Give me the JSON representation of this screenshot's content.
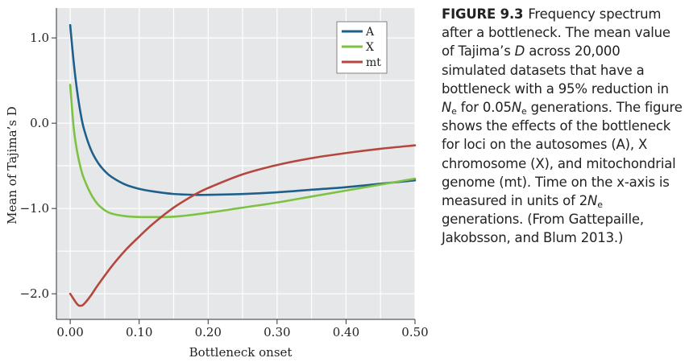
{
  "chart_data": {
    "type": "line",
    "xlabel": "Bottleneck onset",
    "ylabel": "Mean of Tajima’s D",
    "xlim": [
      -0.02,
      0.5
    ],
    "ylim": [
      -2.3,
      1.35
    ],
    "xticks": [
      0.0,
      0.1,
      0.2,
      0.3,
      0.4,
      0.5
    ],
    "xtick_labels": [
      "0.00",
      "0.10",
      "0.20",
      "0.30",
      "0.40",
      "0.50"
    ],
    "yticks": [
      1.0,
      0.0,
      -1.0,
      -2.0
    ],
    "ytick_labels": [
      "1.0",
      "0.0",
      "−1.0",
      "−2.0"
    ],
    "grid": true,
    "legend": "top-right",
    "series": [
      {
        "name": "A",
        "color": "#1f5f8b",
        "x": [
          0.0,
          0.005,
          0.01,
          0.015,
          0.02,
          0.03,
          0.04,
          0.05,
          0.06,
          0.08,
          0.1,
          0.12,
          0.15,
          0.18,
          0.2,
          0.25,
          0.3,
          0.35,
          0.4,
          0.45,
          0.5
        ],
        "y": [
          1.15,
          0.72,
          0.38,
          0.12,
          -0.07,
          -0.31,
          -0.46,
          -0.56,
          -0.63,
          -0.72,
          -0.77,
          -0.8,
          -0.83,
          -0.84,
          -0.84,
          -0.83,
          -0.81,
          -0.78,
          -0.75,
          -0.71,
          -0.67
        ]
      },
      {
        "name": "X",
        "color": "#7dc242",
        "x": [
          0.0,
          0.005,
          0.01,
          0.015,
          0.02,
          0.03,
          0.04,
          0.05,
          0.06,
          0.08,
          0.1,
          0.12,
          0.14,
          0.16,
          0.2,
          0.25,
          0.3,
          0.35,
          0.4,
          0.45,
          0.5
        ],
        "y": [
          0.45,
          -0.05,
          -0.33,
          -0.52,
          -0.65,
          -0.83,
          -0.95,
          -1.02,
          -1.06,
          -1.09,
          -1.1,
          -1.1,
          -1.1,
          -1.09,
          -1.05,
          -0.99,
          -0.93,
          -0.86,
          -0.79,
          -0.72,
          -0.65
        ]
      },
      {
        "name": "mt",
        "color": "#b5473f",
        "x": [
          0.0,
          0.01,
          0.015,
          0.02,
          0.03,
          0.04,
          0.06,
          0.08,
          0.1,
          0.12,
          0.15,
          0.18,
          0.2,
          0.25,
          0.3,
          0.35,
          0.4,
          0.45,
          0.5
        ],
        "y": [
          -2.0,
          -2.12,
          -2.14,
          -2.12,
          -2.02,
          -1.9,
          -1.68,
          -1.49,
          -1.33,
          -1.18,
          -0.99,
          -0.84,
          -0.76,
          -0.6,
          -0.49,
          -0.41,
          -0.35,
          -0.3,
          -0.26
        ]
      }
    ]
  },
  "caption": {
    "figure_label": "FIGURE 9.3",
    "t1": "Frequency spectrum after a bottleneck. The mean value of Tajima’s ",
    "t2": "D",
    "t3": " across 20,000 simulated datasets that have a bottleneck with a 95% reduction in ",
    "t4": "N",
    "t5": "e",
    "t6": " for 0.05",
    "t7": "N",
    "t8": "e",
    "t9": " generations. The figure shows the effects of the bottleneck for loci on the autosomes (A), X chromosome (X), and mitochondrial genome (mt). Time on the x-axis is measured in units of 2",
    "t10": "N",
    "t11": "e",
    "t12": " generations. (From Gattepaille, Jakobsson, and Blum 2013.)"
  }
}
